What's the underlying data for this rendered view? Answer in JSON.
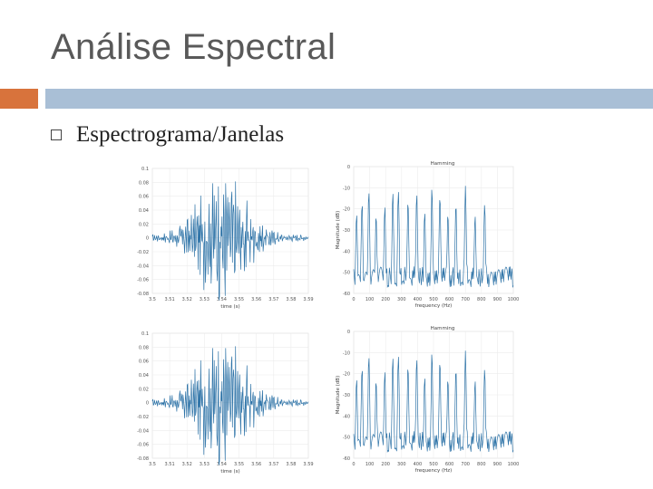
{
  "slide": {
    "title": "Análise Espectral",
    "bullet": "Espectrograma/Janelas"
  },
  "colors": {
    "orange": "#d8733c",
    "blue_bar": "#a9bfd6",
    "signal": "#2f74a8"
  },
  "chart_data": [
    {
      "type": "line",
      "position": "top-left",
      "title": "",
      "xlabel": "time (s)",
      "ylabel": "",
      "xticks": [
        "3.5",
        "3.51",
        "3.52",
        "3.53",
        "3.54",
        "3.55",
        "3.56",
        "3.57",
        "3.58",
        "3.59"
      ],
      "yticks": [
        "0.1",
        "0.08",
        "0.06",
        "0.04",
        "0.02",
        "0",
        "-0.02",
        "-0.04",
        "-0.06",
        "-0.08"
      ],
      "ylim": [
        -0.08,
        0.1
      ],
      "grid": true
    },
    {
      "type": "line",
      "position": "top-right",
      "title": "Hamming",
      "xlabel": "frequency (Hz)",
      "ylabel": "Magnitude (dB)",
      "xticks": [
        "0",
        "100",
        "200",
        "300",
        "400",
        "500",
        "600",
        "700",
        "800",
        "900",
        "1000"
      ],
      "yticks": [
        "0",
        "-10",
        "-20",
        "-30",
        "-40",
        "-50",
        "-60"
      ],
      "ylim": [
        -60,
        0
      ],
      "grid": true
    },
    {
      "type": "line",
      "position": "bottom-left",
      "title": "",
      "xlabel": "time (s)",
      "ylabel": "",
      "xticks": [
        "3.5",
        "3.51",
        "3.52",
        "3.53",
        "3.54",
        "3.55",
        "3.56",
        "3.57",
        "3.58",
        "3.59"
      ],
      "yticks": [
        "0.1",
        "0.08",
        "0.06",
        "0.04",
        "0.02",
        "0",
        "-0.02",
        "-0.04",
        "-0.06",
        "-0.08"
      ],
      "ylim": [
        -0.08,
        0.1
      ],
      "grid": true
    },
    {
      "type": "line",
      "position": "bottom-right",
      "title": "Hamming",
      "xlabel": "frequency (Hz)",
      "ylabel": "Magnitude (dB)",
      "xticks": [
        "0",
        "100",
        "200",
        "300",
        "400",
        "500",
        "600",
        "700",
        "800",
        "900",
        "1000"
      ],
      "yticks": [
        "0",
        "-10",
        "-20",
        "-30",
        "-40",
        "-50",
        "-60"
      ],
      "ylim": [
        -60,
        0
      ],
      "grid": true
    }
  ]
}
